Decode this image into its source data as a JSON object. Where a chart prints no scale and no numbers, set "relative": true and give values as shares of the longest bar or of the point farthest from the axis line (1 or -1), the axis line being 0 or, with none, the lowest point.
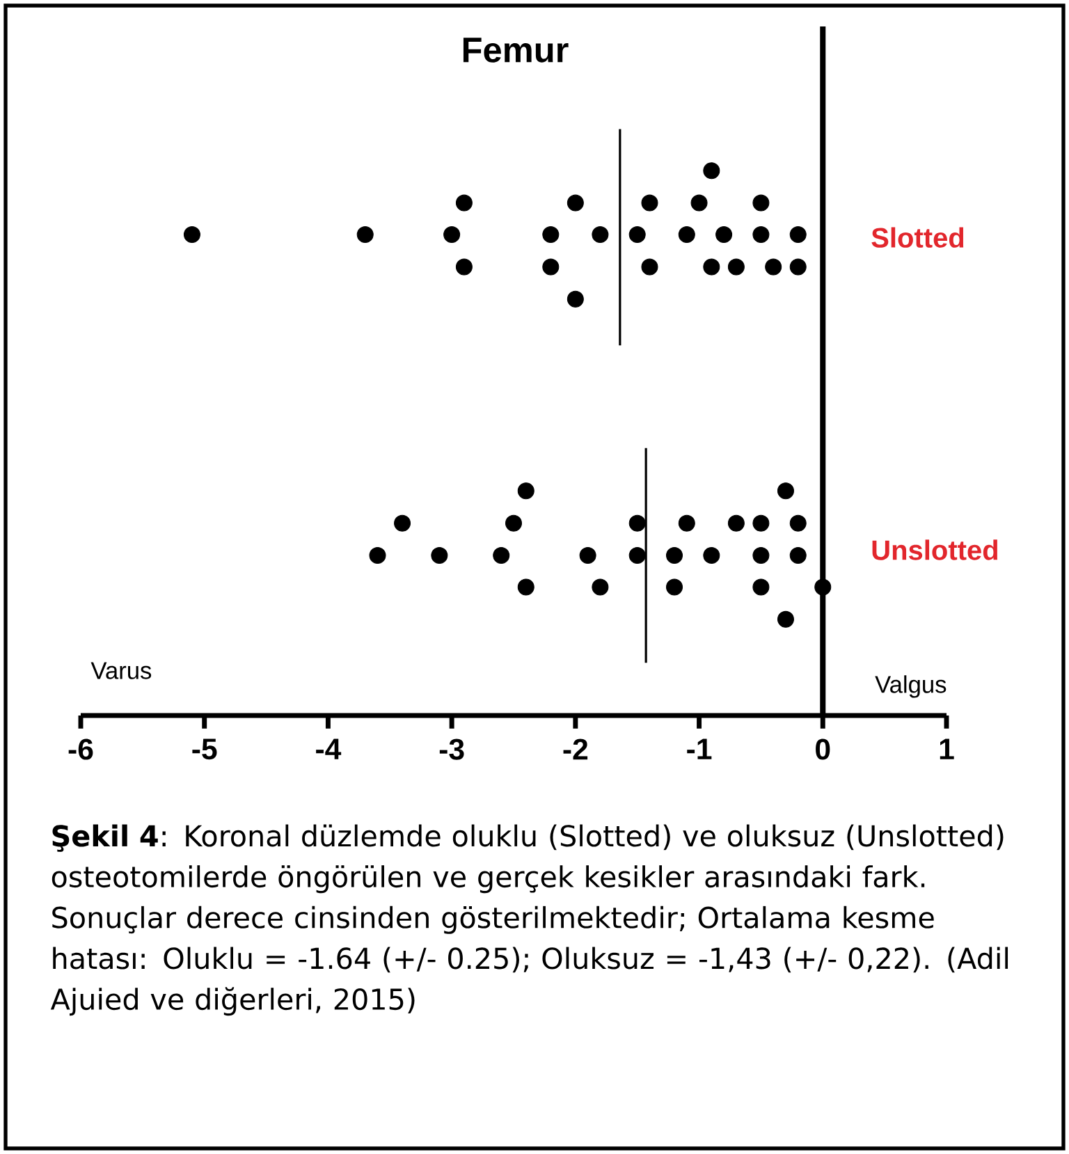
{
  "chart_data": {
    "type": "scatter",
    "title": "Femur",
    "xlim": [
      -6,
      1
    ],
    "xticks": [
      -6,
      -5,
      -4,
      -3,
      -2,
      -1,
      0,
      1
    ],
    "relative": true,
    "tick_labels": "x",
    "marker": "circle",
    "series": [
      {
        "name": "Slotted",
        "color": "#000000",
        "x": [
          -5.1,
          -3.7,
          -3.0,
          -2.2,
          -1.8,
          -1.5,
          -1.1,
          -0.8,
          -0.5,
          -0.2,
          -2.9,
          -2.0,
          -1.4,
          -1.0,
          -0.5,
          -0.9,
          -2.9,
          -2.2,
          -1.4,
          -0.9,
          -0.7,
          -0.4,
          -0.2,
          -2.0
        ],
        "values": [
          0.82,
          0.82,
          0.82,
          0.82,
          0.82,
          0.82,
          0.82,
          0.82,
          0.82,
          0.82,
          0.874,
          0.874,
          0.874,
          0.874,
          0.874,
          0.929,
          0.765,
          0.765,
          0.765,
          0.765,
          0.765,
          0.765,
          0.765,
          0.71
        ]
      },
      {
        "name": "Unslotted",
        "color": "#000000",
        "x": [
          -2.4,
          -0.3,
          -3.4,
          -2.5,
          -1.5,
          -1.1,
          -0.7,
          -0.5,
          -0.2,
          -3.6,
          -3.1,
          -2.6,
          -1.9,
          -1.5,
          -1.2,
          -0.9,
          -0.5,
          -0.2,
          -2.4,
          -1.8,
          -1.2,
          -0.5,
          0,
          -0.3
        ],
        "values": [
          0.383,
          0.383,
          0.328,
          0.328,
          0.328,
          0.328,
          0.328,
          0.328,
          0.328,
          0.273,
          0.273,
          0.273,
          0.273,
          0.273,
          0.273,
          0.273,
          0.273,
          0.273,
          0.219,
          0.219,
          0.219,
          0.219,
          0.219,
          0.164
        ]
      },
      {
        "type": "line",
        "marker": "none",
        "color": "#000000",
        "x": [
          -1.64,
          -1.64
        ],
        "values": [
          0.631,
          1
        ]
      },
      {
        "type": "line",
        "marker": "none",
        "color": "#000000",
        "x": [
          -1.43,
          -1.43
        ],
        "values": [
          0.09,
          0.456
        ]
      }
    ],
    "ref_lines": [
      {
        "axis": "x",
        "value": 0,
        "color": "#000000"
      }
    ],
    "annotations": [
      "Varus",
      "Valgus",
      "**Şekil 4**: Koronal düzlemde oluklu (Slotted) ve oluksuz (Unslotted) osteotomilerde öngörülen ve gerçek kesikler arasındaki fark. Sonuçlar derece cinsinden gösterilmektedir; Ortalama kesme hatası: Oluklu = -1.64 (+/- 0.25); Oluksuz = -1,43 (+/- 0,22). (Adil Ajuied ve diğerleri, 2015)"
    ]
  }
}
